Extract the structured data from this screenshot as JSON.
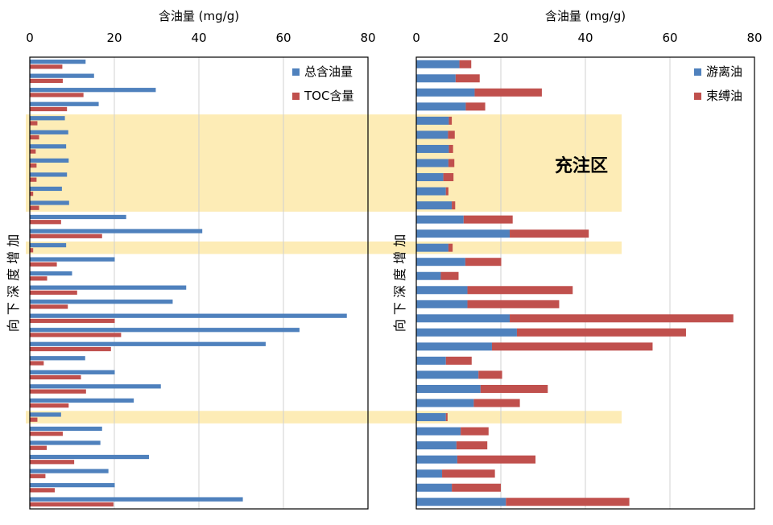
{
  "annotation": {
    "label": "充注区",
    "highlight_color": "#fde9a9"
  },
  "chart_data": [
    {
      "type": "bar",
      "orientation": "horizontal",
      "xlabel": "含油量 (mg/g)",
      "ylabel": "向 下 深 度 增 加",
      "xlim": [
        0,
        80
      ],
      "x_ticks": [
        0,
        20,
        40,
        60,
        80
      ],
      "grid": true,
      "legend": "top-right",
      "series": [
        {
          "name": "总含油量",
          "color": "#4f81bd",
          "values": [
            13.2,
            15.2,
            29.8,
            16.3,
            8.3,
            9.1,
            8.6,
            9.2,
            8.8,
            7.6,
            9.3,
            22.8,
            40.8,
            8.6,
            20.1,
            10.0,
            37.0,
            33.8,
            75.0,
            63.8,
            55.8,
            13.1,
            20.1,
            31.0,
            24.6,
            7.4,
            17.1,
            16.7,
            28.2,
            18.6,
            20.1,
            50.4
          ]
        },
        {
          "name": "TOC含量",
          "color": "#c0504d",
          "values": [
            7.7,
            7.8,
            12.7,
            8.8,
            1.8,
            2.2,
            1.4,
            1.6,
            1.6,
            0.8,
            2.2,
            7.4,
            17.1,
            0.8,
            6.4,
            4.1,
            11.2,
            9.0,
            20.1,
            21.6,
            19.2,
            3.3,
            12.1,
            13.3,
            9.2,
            1.8,
            7.8,
            4.0,
            10.5,
            3.7,
            5.9,
            19.8
          ]
        }
      ]
    },
    {
      "type": "bar",
      "orientation": "horizontal",
      "stacked": true,
      "xlabel": "含油量 (mg/g)",
      "ylabel": "向 下 深 度 增 加",
      "xlim": [
        0,
        80
      ],
      "x_ticks": [
        0,
        20,
        40,
        60,
        80
      ],
      "grid": true,
      "legend": "top-right",
      "series": [
        {
          "name": "游离油",
          "color": "#4f81bd",
          "values": [
            10.2,
            9.3,
            13.8,
            11.7,
            7.7,
            7.5,
            7.7,
            7.6,
            6.4,
            7.0,
            8.4,
            11.2,
            22.1,
            7.6,
            11.6,
            5.8,
            12.1,
            12.1,
            22.1,
            23.8,
            17.9,
            7.0,
            14.7,
            15.2,
            13.6,
            7.0,
            10.5,
            9.5,
            9.7,
            6.1,
            8.4,
            21.2
          ]
        },
        {
          "name": "束缚油",
          "color": "#c0504d",
          "values": [
            2.8,
            5.7,
            15.9,
            4.6,
            0.7,
            1.6,
            1.0,
            1.4,
            2.4,
            0.6,
            0.8,
            11.6,
            18.7,
            1.0,
            8.5,
            4.2,
            24.9,
            21.7,
            52.9,
            40.0,
            38.0,
            6.1,
            5.6,
            15.9,
            10.9,
            0.4,
            6.6,
            7.3,
            18.5,
            12.5,
            11.6,
            29.2
          ]
        }
      ]
    }
  ]
}
